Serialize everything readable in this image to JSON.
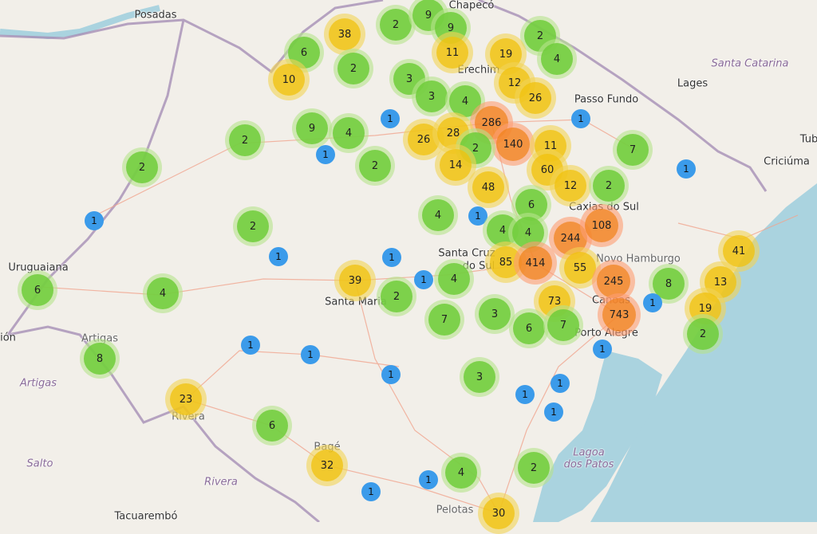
{
  "map": {
    "colors": {
      "land": "#f2efe9",
      "water": "#aad3df",
      "small_cluster": "#6ecc39",
      "medium_cluster": "#f0c20c",
      "large_cluster": "#f18017",
      "single_marker": "#3b9bea",
      "road": "#f0a58f",
      "border": "#a58fb5"
    },
    "places": [
      "Posadas",
      "Chapecó",
      "Erechim",
      "Passo Fundo",
      "Lages",
      "Santa Catarina",
      "Caxias do Sul",
      "Tub",
      "Criciúma",
      "Uruguaiana",
      "ión",
      "Artigas",
      "Artigas",
      "Santa Maria",
      "Santa Cruz",
      "do Sul",
      "Novo Hamburgo",
      "Canoas",
      "Porto Alegre",
      "Lagoa",
      "dos Patos",
      "Rivera",
      "Rivera",
      "Salto",
      "Tacuarembó",
      "Pelotas",
      "Bagé"
    ],
    "clusters": [
      2,
      9,
      9,
      38,
      6,
      2,
      19,
      11,
      4,
      2,
      10,
      3,
      12,
      3,
      4,
      26,
      1,
      286,
      1,
      9,
      4,
      2,
      26,
      28,
      140,
      11,
      2,
      7,
      1,
      2,
      2,
      14,
      60,
      1,
      12,
      2,
      48,
      6,
      4,
      1,
      1,
      2,
      4,
      4,
      244,
      108,
      41,
      1,
      1,
      85,
      414,
      55,
      6,
      4,
      39,
      1,
      4,
      245,
      8,
      13,
      2,
      73,
      1,
      19,
      7,
      3,
      743,
      6,
      7,
      2,
      1,
      1,
      1,
      8,
      1,
      3,
      1,
      1,
      23,
      1,
      6,
      32,
      2,
      4,
      1,
      1,
      30
    ]
  }
}
